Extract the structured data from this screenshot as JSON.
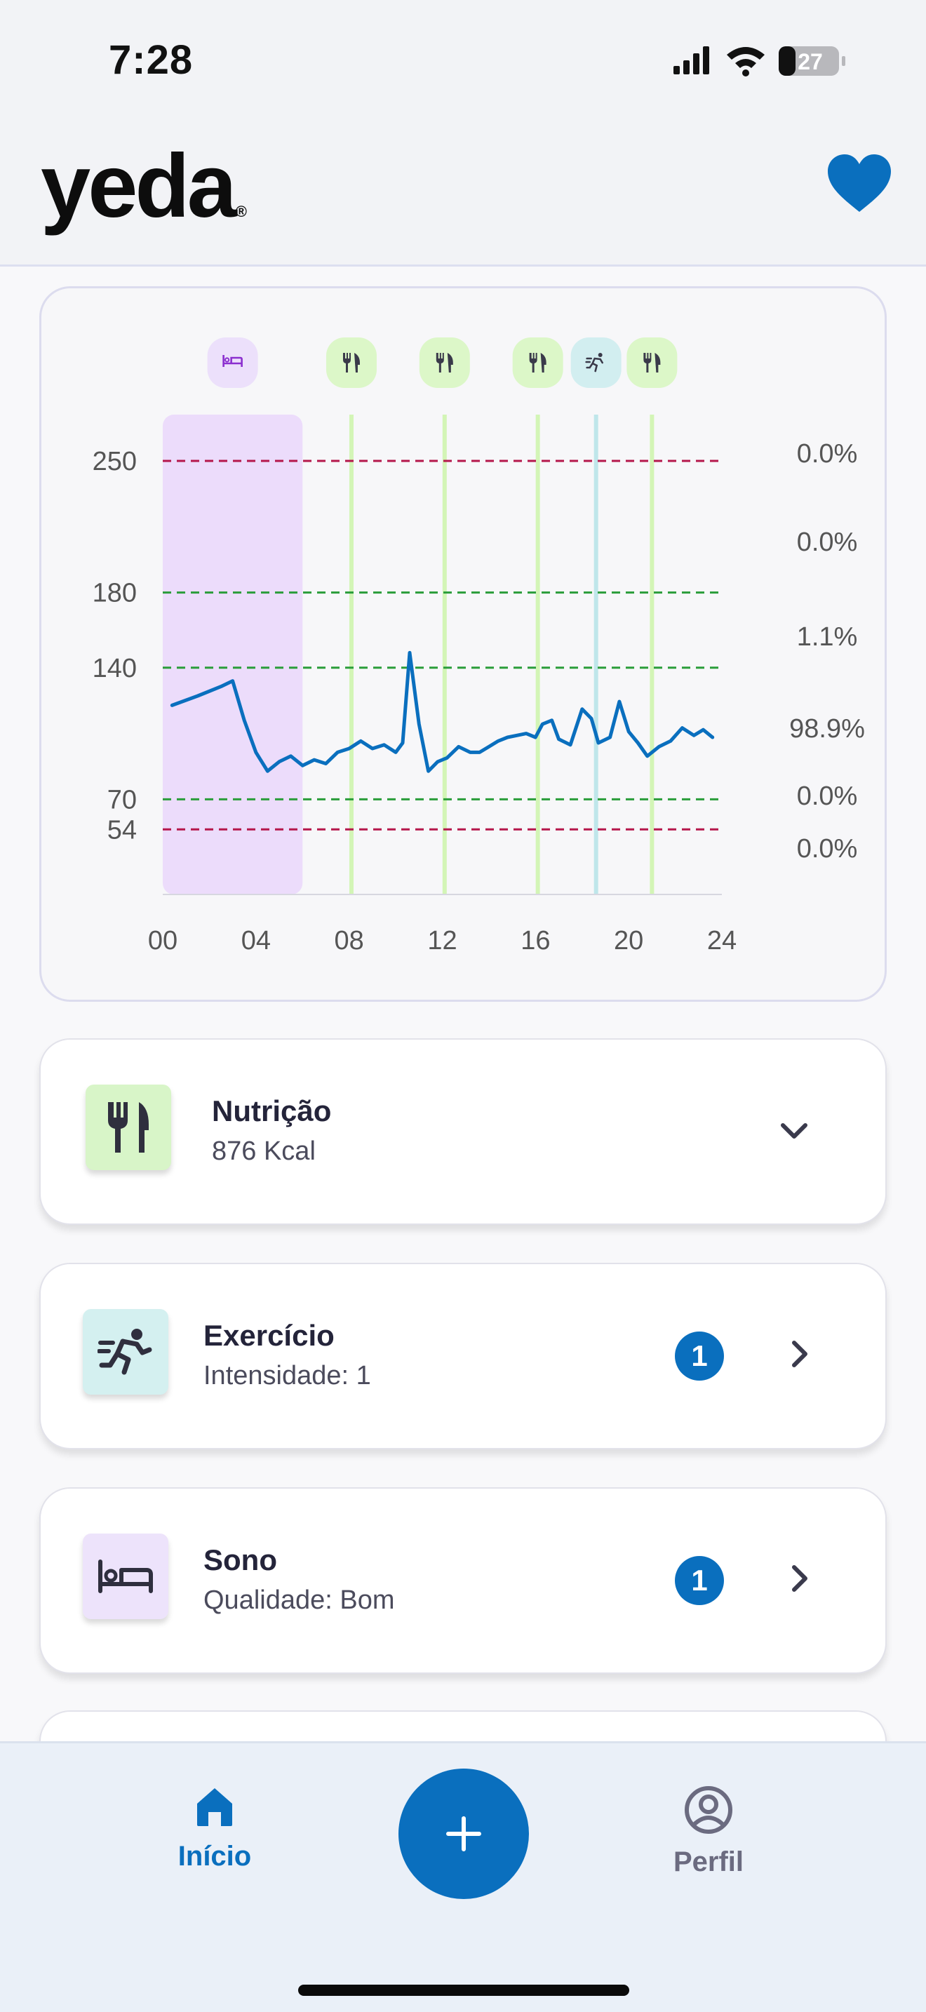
{
  "status_bar": {
    "time": "7:28",
    "battery": "27"
  },
  "header": {
    "logo": "yeda",
    "logo_mark": "®",
    "favorite_icon": "heart-icon"
  },
  "chart_data": {
    "type": "line",
    "x_ticks": [
      "00",
      "04",
      "08",
      "12",
      "16",
      "20",
      "24"
    ],
    "y_ticks": [
      250,
      180,
      140,
      70,
      54
    ],
    "xlim": [
      0,
      24
    ],
    "ylim": [
      0,
      300
    ],
    "threshold_lines": [
      {
        "value": 250,
        "color": "#b5174b"
      },
      {
        "value": 180,
        "color": "#2a9d3a"
      },
      {
        "value": 140,
        "color": "#2a9d3a"
      },
      {
        "value": 70,
        "color": "#2a9d3a"
      },
      {
        "value": 54,
        "color": "#b5174b"
      }
    ],
    "percentages": [
      "0.0%",
      "0.0%",
      "1.1%",
      "98.9%",
      "0.0%",
      "0.0%"
    ],
    "sleep_period": [
      0,
      6
    ],
    "events": [
      {
        "type": "sleep",
        "hour": 3,
        "icon": "bed-icon"
      },
      {
        "type": "meal",
        "hour": 8.1,
        "icon": "fork-knife-icon"
      },
      {
        "type": "meal",
        "hour": 12.1,
        "icon": "fork-knife-icon"
      },
      {
        "type": "meal",
        "hour": 16.1,
        "icon": "fork-knife-icon"
      },
      {
        "type": "exercise",
        "hour": 18.6,
        "icon": "running-icon"
      },
      {
        "type": "meal",
        "hour": 21,
        "icon": "fork-knife-icon"
      }
    ],
    "series": [
      {
        "color": "#0a6fbe",
        "points": [
          [
            0.4,
            120
          ],
          [
            1.5,
            125
          ],
          [
            2.5,
            130
          ],
          [
            3.0,
            133
          ],
          [
            3.5,
            112
          ],
          [
            4.0,
            95
          ],
          [
            4.5,
            85
          ],
          [
            5.0,
            90
          ],
          [
            5.5,
            93
          ],
          [
            6.0,
            88
          ],
          [
            6.5,
            91
          ],
          [
            7.0,
            89
          ],
          [
            7.5,
            95
          ],
          [
            8.0,
            97
          ],
          [
            8.5,
            101
          ],
          [
            9.0,
            97
          ],
          [
            9.5,
            99
          ],
          [
            10.0,
            95
          ],
          [
            10.3,
            100
          ],
          [
            10.6,
            148
          ],
          [
            11.0,
            110
          ],
          [
            11.4,
            85
          ],
          [
            11.8,
            90
          ],
          [
            12.2,
            92
          ],
          [
            12.7,
            98
          ],
          [
            13.2,
            95
          ],
          [
            13.6,
            95
          ],
          [
            14.0,
            98
          ],
          [
            14.4,
            101
          ],
          [
            14.8,
            103
          ],
          [
            15.2,
            104
          ],
          [
            15.6,
            105
          ],
          [
            16.0,
            103
          ],
          [
            16.3,
            110
          ],
          [
            16.7,
            112
          ],
          [
            17.0,
            102
          ],
          [
            17.5,
            99
          ],
          [
            18.0,
            118
          ],
          [
            18.4,
            113
          ],
          [
            18.7,
            100
          ],
          [
            19.2,
            103
          ],
          [
            19.6,
            122
          ],
          [
            20.0,
            106
          ],
          [
            20.4,
            100
          ],
          [
            20.8,
            93
          ],
          [
            21.3,
            98
          ],
          [
            21.8,
            101
          ],
          [
            22.3,
            108
          ],
          [
            22.8,
            104
          ],
          [
            23.2,
            107
          ],
          [
            23.6,
            103
          ]
        ]
      }
    ]
  },
  "cards": [
    {
      "title": "Nutrição",
      "subtitle": "876 Kcal",
      "icon": "fork-knife-icon",
      "color": "#d8f5c8",
      "action": "chevron-down-icon"
    },
    {
      "title": "Exercício",
      "subtitle": "Intensidade: 1",
      "icon": "running-icon",
      "color": "#d4f0f0",
      "badge": "1",
      "action": "chevron-right-icon"
    },
    {
      "title": "Sono",
      "subtitle": "Qualidade: Bom",
      "icon": "bed-icon",
      "color": "#ede3fb",
      "badge": "1",
      "action": "chevron-right-icon"
    }
  ],
  "nav": {
    "home_label": "Início",
    "profile_label": "Perfil",
    "active_color": "#0a6fbe",
    "inactive_color": "#6b6b80"
  }
}
